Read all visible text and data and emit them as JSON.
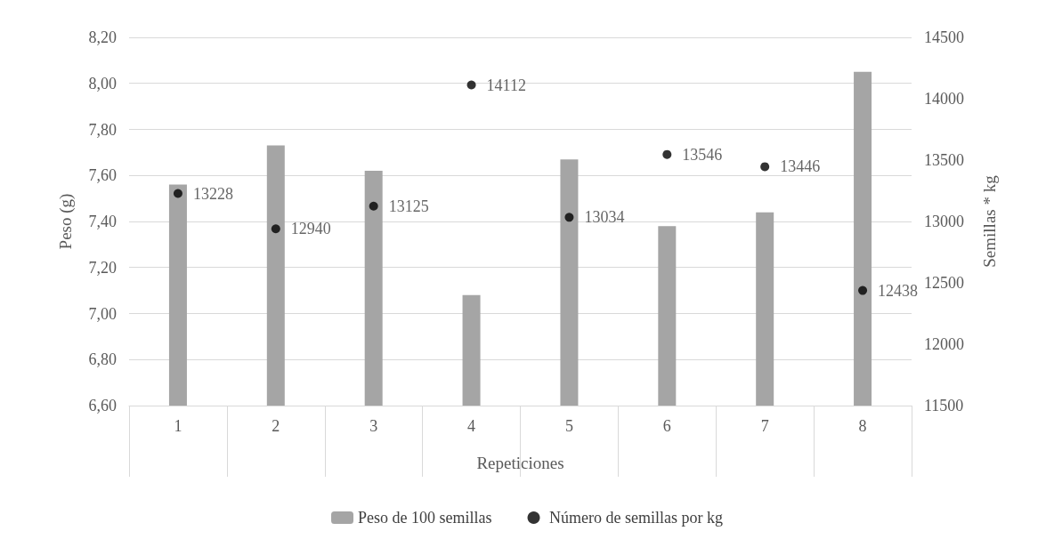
{
  "chart_data": {
    "type": "bar",
    "xlabel": "Repeticiones",
    "ylabel": "Peso (g)",
    "y2label": "Semillas * kg",
    "categories": [
      "1",
      "2",
      "3",
      "4",
      "5",
      "6",
      "7",
      "8"
    ],
    "series": [
      {
        "name": "Peso de 100 semillas",
        "color": "#a5a5a5",
        "values": [
          7.56,
          7.73,
          7.62,
          7.08,
          7.67,
          7.38,
          7.44,
          8.05
        ]
      },
      {
        "name": "Número de semillas por kg",
        "type": "scatter",
        "axis": "y2",
        "color": "#000000",
        "marker": "circle",
        "data_labels": true,
        "values": [
          13228,
          12940,
          13125,
          14112,
          13034,
          13546,
          13446,
          12438
        ]
      }
    ],
    "ylim": [
      6.6,
      8.2
    ],
    "yticks": [
      {
        "value": 6.6,
        "label": "6,60"
      },
      {
        "value": 6.8,
        "label": "6,80"
      },
      {
        "value": 7.0,
        "label": "7,00"
      },
      {
        "value": 7.2,
        "label": "7,20"
      },
      {
        "value": 7.4,
        "label": "7,40"
      },
      {
        "value": 7.6,
        "label": "7,60"
      },
      {
        "value": 7.8,
        "label": "7,80"
      },
      {
        "value": 8.0,
        "label": "8,00"
      },
      {
        "value": 8.2,
        "label": "8,20"
      }
    ],
    "y2lim": [
      11500,
      14500
    ],
    "y2ticks": [
      11500,
      12000,
      12500,
      13000,
      13500,
      14000,
      14500
    ],
    "grid": "y",
    "legend": "bottom"
  }
}
